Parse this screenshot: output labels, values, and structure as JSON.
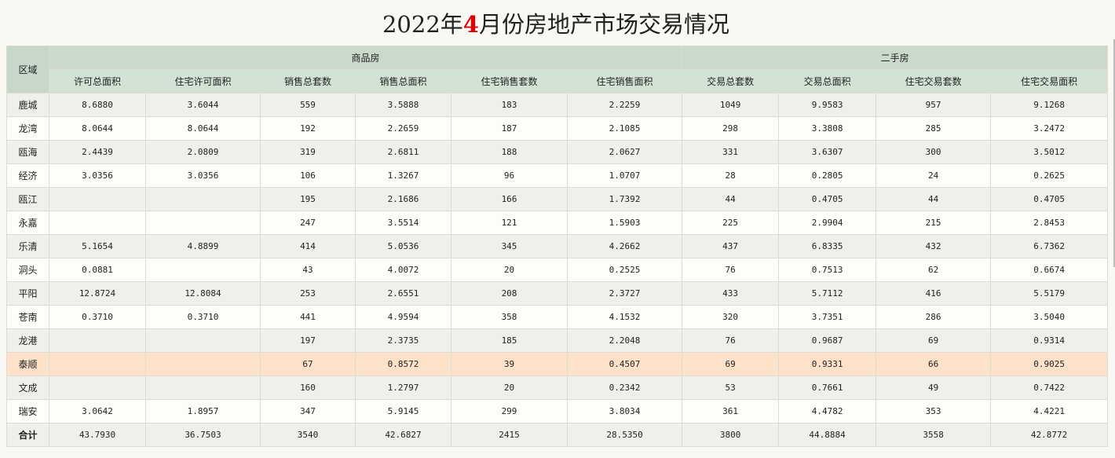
{
  "title": {
    "prefix": "2022年",
    "month": "4",
    "suffix": "月份房地产市场交易情况"
  },
  "colors": {
    "header": "#c9dacd",
    "highlight_row": "#fde2c9",
    "month_accent": "#e00000"
  },
  "table": {
    "area_header": "区域",
    "groups": [
      "商品房",
      "二手房"
    ],
    "columns": [
      "许可总面积",
      "住宅许可面积",
      "销售总套数",
      "销售总面积",
      "住宅销售套数",
      "住宅销售面积",
      "交易总套数",
      "交易总面积",
      "住宅交易套数",
      "住宅交易面积"
    ],
    "highlight_row": "泰顺",
    "rows": [
      [
        "鹿城",
        "8.6880",
        "3.6044",
        "559",
        "3.5888",
        "183",
        "2.2259",
        "1049",
        "9.9583",
        "957",
        "9.1268"
      ],
      [
        "龙湾",
        "8.0644",
        "8.0644",
        "192",
        "2.2659",
        "187",
        "2.1085",
        "298",
        "3.3808",
        "285",
        "3.2472"
      ],
      [
        "瓯海",
        "2.4439",
        "2.0809",
        "319",
        "2.6811",
        "188",
        "2.0627",
        "331",
        "3.6307",
        "300",
        "3.5012"
      ],
      [
        "经济",
        "3.0356",
        "3.0356",
        "106",
        "1.3267",
        "96",
        "1.0707",
        "28",
        "0.2805",
        "24",
        "0.2625"
      ],
      [
        "瓯江",
        "",
        "",
        "195",
        "2.1686",
        "166",
        "1.7392",
        "44",
        "0.4705",
        "44",
        "0.4705"
      ],
      [
        "永嘉",
        "",
        "",
        "247",
        "3.5514",
        "121",
        "1.5903",
        "225",
        "2.9904",
        "215",
        "2.8453"
      ],
      [
        "乐清",
        "5.1654",
        "4.8899",
        "414",
        "5.0536",
        "345",
        "4.2662",
        "437",
        "6.8335",
        "432",
        "6.7362"
      ],
      [
        "洞头",
        "0.0881",
        "",
        "43",
        "4.0072",
        "20",
        "0.2525",
        "76",
        "0.7513",
        "62",
        "0.6674"
      ],
      [
        "平阳",
        "12.8724",
        "12.8084",
        "253",
        "2.6551",
        "208",
        "2.3727",
        "433",
        "5.7112",
        "416",
        "5.5179"
      ],
      [
        "苍南",
        "0.3710",
        "0.3710",
        "441",
        "4.9594",
        "358",
        "4.1532",
        "320",
        "3.7351",
        "286",
        "3.5040"
      ],
      [
        "龙港",
        "",
        "",
        "197",
        "2.3735",
        "185",
        "2.2048",
        "76",
        "0.9687",
        "69",
        "0.9314"
      ],
      [
        "泰顺",
        "",
        "",
        "67",
        "0.8572",
        "39",
        "0.4507",
        "69",
        "0.9331",
        "66",
        "0.9025"
      ],
      [
        "文成",
        "",
        "",
        "160",
        "1.2797",
        "20",
        "0.2342",
        "53",
        "0.7661",
        "49",
        "0.7422"
      ],
      [
        "瑞安",
        "3.0642",
        "1.8957",
        "347",
        "5.9145",
        "299",
        "3.8034",
        "361",
        "4.4782",
        "353",
        "4.4221"
      ],
      [
        "合计",
        "43.7930",
        "36.7503",
        "3540",
        "42.6827",
        "2415",
        "28.5350",
        "3800",
        "44.8884",
        "3558",
        "42.8772"
      ]
    ]
  }
}
